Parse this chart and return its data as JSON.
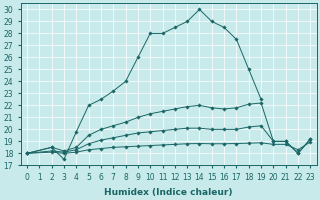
{
  "xlabel": "Humidex (Indice chaleur)",
  "bg_color": "#c8eaea",
  "line_color": "#1a6666",
  "grid_color": "#ffffff",
  "xlim": [
    -0.5,
    23.5
  ],
  "ylim": [
    17,
    30.5
  ],
  "yticks": [
    17,
    18,
    19,
    20,
    21,
    22,
    23,
    24,
    25,
    26,
    27,
    28,
    29,
    30
  ],
  "xticks": [
    0,
    1,
    2,
    3,
    4,
    5,
    6,
    7,
    8,
    9,
    10,
    11,
    12,
    13,
    14,
    15,
    16,
    17,
    18,
    19,
    20,
    21,
    22,
    23
  ],
  "line1_x": [
    0,
    2,
    3,
    4,
    5,
    6,
    7,
    8,
    9,
    10,
    11,
    12,
    13,
    14,
    15,
    16,
    17,
    18,
    19
  ],
  "line1_y": [
    18,
    18.5,
    17.5,
    19.8,
    22.0,
    22.5,
    23.2,
    24.0,
    26.0,
    28.0,
    28.0,
    28.5,
    29.0,
    30.0,
    29.0,
    28.5,
    27.5,
    25.0,
    22.5
  ],
  "line2_x": [
    0,
    2,
    3,
    4,
    5,
    6,
    7,
    8,
    9,
    10,
    11,
    12,
    13,
    14,
    15,
    16,
    17,
    18,
    19,
    20,
    21,
    22,
    23
  ],
  "line2_y": [
    18.0,
    18.5,
    18.2,
    18.5,
    19.5,
    20.0,
    20.3,
    20.6,
    21.0,
    21.3,
    21.5,
    21.7,
    21.9,
    22.0,
    21.8,
    21.7,
    21.8,
    22.1,
    22.2,
    19.0,
    19.0,
    18.0,
    19.2
  ],
  "line3_x": [
    0,
    2,
    3,
    4,
    5,
    6,
    7,
    8,
    9,
    10,
    11,
    12,
    13,
    14,
    15,
    16,
    17,
    18,
    19,
    20,
    21,
    22,
    23
  ],
  "line3_y": [
    18.0,
    18.2,
    18.1,
    18.3,
    18.8,
    19.1,
    19.3,
    19.5,
    19.7,
    19.8,
    19.9,
    20.0,
    20.1,
    20.1,
    20.0,
    20.0,
    20.0,
    20.2,
    20.3,
    19.0,
    19.0,
    18.0,
    19.2
  ],
  "line4_x": [
    0,
    2,
    3,
    4,
    5,
    6,
    7,
    8,
    9,
    10,
    11,
    12,
    13,
    14,
    15,
    16,
    17,
    18,
    19,
    20,
    21,
    22,
    23
  ],
  "line4_y": [
    18.0,
    18.1,
    18.0,
    18.1,
    18.3,
    18.4,
    18.5,
    18.55,
    18.6,
    18.65,
    18.7,
    18.75,
    18.8,
    18.82,
    18.8,
    18.8,
    18.82,
    18.85,
    18.88,
    18.75,
    18.75,
    18.3,
    18.95
  ],
  "tick_fontsize": 5.5,
  "xlabel_fontsize": 6.5,
  "linewidth": 0.7,
  "markersize": 1.8
}
